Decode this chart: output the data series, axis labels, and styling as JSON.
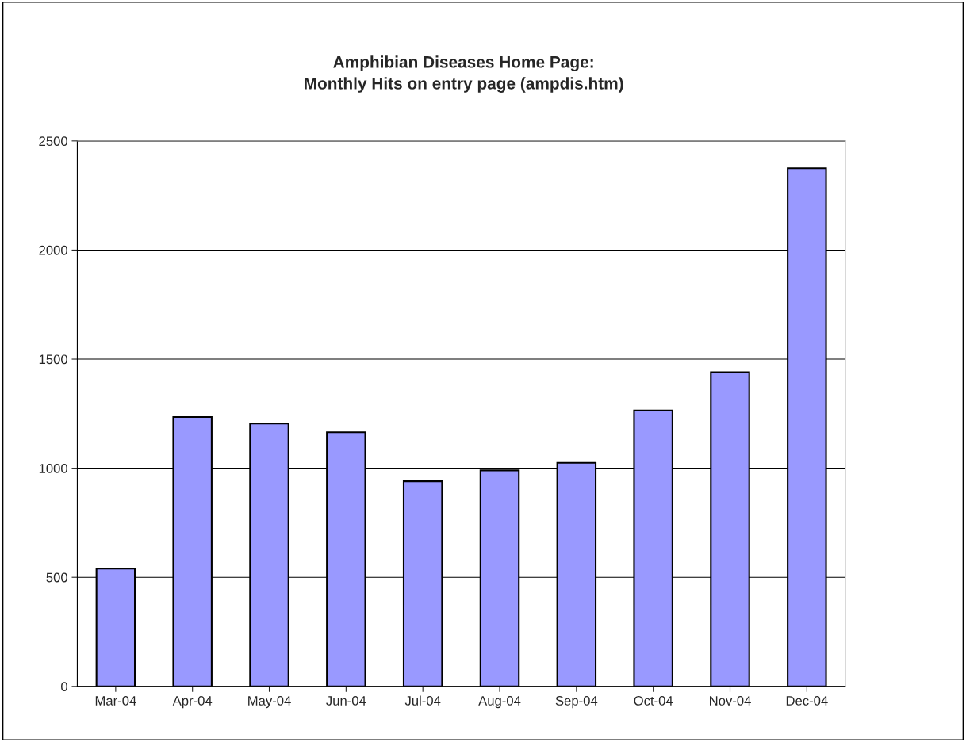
{
  "chart_data": {
    "type": "bar",
    "title": "Amphibian Diseases Home Page:\nMonthly Hits on entry page (ampdis.htm)",
    "categories": [
      "Mar-04",
      "Apr-04",
      "May-04",
      "Jun-04",
      "Jul-04",
      "Aug-04",
      "Sep-04",
      "Oct-04",
      "Nov-04",
      "Dec-04"
    ],
    "values": [
      540,
      1235,
      1205,
      1165,
      940,
      990,
      1025,
      1265,
      1440,
      2375
    ],
    "color": "#9999ff",
    "ylim": [
      0,
      2500
    ],
    "yticks": [
      0,
      500,
      1000,
      1500,
      2000,
      2500
    ],
    "grid": "y",
    "legend": false
  }
}
